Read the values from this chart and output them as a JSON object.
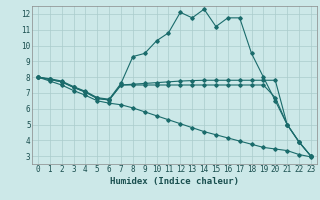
{
  "xlabel": "Humidex (Indice chaleur)",
  "ylabel": "",
  "background_color": "#cce8e8",
  "grid_color": "#aacccc",
  "line_color": "#1a6b6b",
  "xlim": [
    -0.5,
    23.5
  ],
  "ylim": [
    2.5,
    12.5
  ],
  "xticks": [
    0,
    1,
    2,
    3,
    4,
    5,
    6,
    7,
    8,
    9,
    10,
    11,
    12,
    13,
    14,
    15,
    16,
    17,
    18,
    19,
    20,
    21,
    22,
    23
  ],
  "yticks": [
    3,
    4,
    5,
    6,
    7,
    8,
    9,
    10,
    11,
    12
  ],
  "line1_x": [
    0,
    1,
    2,
    3,
    4,
    5,
    6,
    7,
    8,
    9,
    10,
    11,
    12,
    13,
    14,
    15,
    16,
    17,
    18,
    19,
    20,
    21,
    22,
    23
  ],
  "line1_y": [
    8.0,
    7.9,
    7.75,
    7.4,
    7.1,
    6.7,
    6.6,
    7.6,
    9.3,
    9.5,
    10.3,
    10.8,
    12.1,
    11.75,
    12.3,
    11.2,
    11.75,
    11.75,
    9.5,
    8.0,
    6.5,
    5.0,
    3.9,
    3.0
  ],
  "line2_x": [
    0,
    1,
    2,
    3,
    4,
    5,
    6,
    7,
    8,
    9,
    10,
    11,
    12,
    13,
    14,
    15,
    16,
    17,
    18,
    19,
    20,
    21,
    22,
    23
  ],
  "line2_y": [
    8.0,
    7.85,
    7.7,
    7.35,
    7.05,
    6.65,
    6.55,
    7.5,
    7.55,
    7.6,
    7.65,
    7.7,
    7.75,
    7.78,
    7.8,
    7.8,
    7.8,
    7.8,
    7.8,
    7.8,
    7.8,
    5.0,
    3.9,
    3.0
  ],
  "line3_x": [
    0,
    1,
    2,
    3,
    4,
    5,
    6,
    7,
    8,
    9,
    10,
    11,
    12,
    13,
    14,
    15,
    16,
    17,
    18,
    19,
    20,
    21,
    22,
    23
  ],
  "line3_y": [
    8.0,
    7.85,
    7.7,
    7.35,
    7.05,
    6.65,
    6.55,
    7.5,
    7.5,
    7.5,
    7.5,
    7.5,
    7.5,
    7.5,
    7.5,
    7.5,
    7.5,
    7.5,
    7.5,
    7.5,
    6.7,
    5.0,
    3.9,
    3.0
  ],
  "line4_x": [
    0,
    1,
    2,
    3,
    4,
    5,
    6,
    7,
    8,
    9,
    10,
    11,
    12,
    13,
    14,
    15,
    16,
    17,
    18,
    19,
    20,
    21,
    22,
    23
  ],
  "line4_y": [
    8.0,
    7.75,
    7.5,
    7.15,
    6.85,
    6.5,
    6.35,
    6.25,
    6.05,
    5.8,
    5.55,
    5.3,
    5.05,
    4.8,
    4.55,
    4.35,
    4.15,
    3.95,
    3.75,
    3.55,
    3.45,
    3.35,
    3.1,
    2.95
  ]
}
